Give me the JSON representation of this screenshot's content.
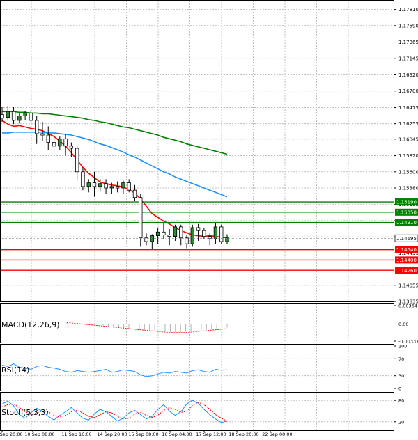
{
  "chart_data": [
    {
      "type": "candlestick",
      "title": "",
      "ylim": [
        1.13835,
        1.1792
      ],
      "price_ticks": [
        "1.17810",
        "1.17590",
        "1.17365",
        "1.17145",
        "1.16920",
        "1.16700",
        "1.16475",
        "1.16255",
        "1.16045",
        "1.15820",
        "1.15600",
        "1.15380",
        "1.15155",
        "1.14935",
        "1.14715",
        "1.14495",
        "1.14275",
        "1.14055",
        "1.13835"
      ],
      "x_ticks": [
        "9 Sep 20:00",
        "10 Sep 08:00",
        "11 Sep 16:00",
        "14 Sep 20:00",
        "15 Sep 08:00",
        "16 Sep 04:00",
        "17 Sep 12:00",
        "18 Sep 20:00",
        "22 Sep 00:00"
      ],
      "current_price": "1.14695",
      "levels": [
        {
          "label": "1.15190",
          "value": 1.1519,
          "kind": "resistance",
          "color": "#008000"
        },
        {
          "label": "1.15050",
          "value": 1.1505,
          "kind": "resistance",
          "color": "#008000"
        },
        {
          "label": "1.14910",
          "value": 1.1491,
          "kind": "resistance",
          "color": "#008000"
        },
        {
          "label": "1.14540",
          "value": 1.1454,
          "kind": "support",
          "color": "#ff0000"
        },
        {
          "label": "1.14400",
          "value": 1.144,
          "kind": "support",
          "color": "#ff0000"
        },
        {
          "label": "1.14260",
          "value": 1.1426,
          "kind": "support",
          "color": "#ff0000"
        }
      ],
      "moving_averages": [
        {
          "color": "#ff0000",
          "values": [
            1.163,
            1.1625,
            1.1622,
            1.1623,
            1.1621,
            1.1619,
            1.1618,
            1.1616,
            1.1612,
            1.1608,
            1.1602,
            1.1595,
            1.1586,
            1.1576,
            1.1566,
            1.1558,
            1.1552,
            1.1546,
            1.1544,
            1.1542,
            1.1541,
            1.1539,
            1.1536,
            1.1531,
            1.1523,
            1.1513,
            1.1503,
            1.1498,
            1.1493,
            1.1489,
            1.1484,
            1.148,
            1.1477,
            1.1474,
            1.1473,
            1.1472,
            1.1473,
            1.1472,
            1.1471,
            1.147
          ]
        },
        {
          "color": "#1e90ff",
          "values": [
            1.1613,
            1.1613,
            1.1614,
            1.1614,
            1.1614,
            1.1614,
            1.1614,
            1.1614,
            1.1613,
            1.1613,
            1.1612,
            1.1611,
            1.161,
            1.1608,
            1.1606,
            1.1604,
            1.1601,
            1.1598,
            1.1596,
            1.1593,
            1.159,
            1.1587,
            1.1583,
            1.158,
            1.1576,
            1.1572,
            1.1568,
            1.1564,
            1.156,
            1.1557,
            1.1553,
            1.155,
            1.1547,
            1.1544,
            1.1541,
            1.1538,
            1.1535,
            1.1532,
            1.1529,
            1.1526
          ]
        },
        {
          "color": "#008000",
          "values": [
            1.1642,
            1.1642,
            1.1642,
            1.1641,
            1.1641,
            1.164,
            1.164,
            1.1639,
            1.1639,
            1.1638,
            1.1637,
            1.1636,
            1.1635,
            1.1634,
            1.1633,
            1.1631,
            1.163,
            1.1628,
            1.1627,
            1.1625,
            1.1623,
            1.1621,
            1.162,
            1.1618,
            1.1616,
            1.1614,
            1.1612,
            1.161,
            1.1607,
            1.1605,
            1.1603,
            1.1601,
            1.1598,
            1.1596,
            1.1594,
            1.1592,
            1.159,
            1.1588,
            1.1586,
            1.1584
          ]
        }
      ],
      "candles": [
        {
          "o": 1.1638,
          "h": 1.1648,
          "l": 1.1628,
          "c": 1.1633
        },
        {
          "o": 1.1634,
          "h": 1.165,
          "l": 1.163,
          "c": 1.1642
        },
        {
          "o": 1.1642,
          "h": 1.1648,
          "l": 1.1625,
          "c": 1.163
        },
        {
          "o": 1.163,
          "h": 1.164,
          "l": 1.1626,
          "c": 1.1636
        },
        {
          "o": 1.1636,
          "h": 1.1643,
          "l": 1.163,
          "c": 1.164
        },
        {
          "o": 1.164,
          "h": 1.1644,
          "l": 1.1626,
          "c": 1.163
        },
        {
          "o": 1.163,
          "h": 1.1636,
          "l": 1.1598,
          "c": 1.1612
        },
        {
          "o": 1.1612,
          "h": 1.1628,
          "l": 1.1602,
          "c": 1.161
        },
        {
          "o": 1.161,
          "h": 1.1622,
          "l": 1.159,
          "c": 1.16
        },
        {
          "o": 1.16,
          "h": 1.1612,
          "l": 1.1585,
          "c": 1.1595
        },
        {
          "o": 1.1595,
          "h": 1.1608,
          "l": 1.159,
          "c": 1.1605
        },
        {
          "o": 1.1605,
          "h": 1.1612,
          "l": 1.1582,
          "c": 1.1595
        },
        {
          "o": 1.1595,
          "h": 1.16,
          "l": 1.158,
          "c": 1.1592
        },
        {
          "o": 1.1592,
          "h": 1.1596,
          "l": 1.1548,
          "c": 1.156
        },
        {
          "o": 1.156,
          "h": 1.1566,
          "l": 1.1535,
          "c": 1.154
        },
        {
          "o": 1.154,
          "h": 1.155,
          "l": 1.1532,
          "c": 1.1545
        },
        {
          "o": 1.1545,
          "h": 1.156,
          "l": 1.1526,
          "c": 1.154
        },
        {
          "o": 1.154,
          "h": 1.155,
          "l": 1.1533,
          "c": 1.1544
        },
        {
          "o": 1.1544,
          "h": 1.155,
          "l": 1.153,
          "c": 1.1538
        },
        {
          "o": 1.1538,
          "h": 1.1545,
          "l": 1.153,
          "c": 1.154
        },
        {
          "o": 1.154,
          "h": 1.1547,
          "l": 1.1532,
          "c": 1.1538
        },
        {
          "o": 1.1538,
          "h": 1.1548,
          "l": 1.153,
          "c": 1.1545
        },
        {
          "o": 1.1545,
          "h": 1.155,
          "l": 1.1532,
          "c": 1.1535
        },
        {
          "o": 1.1535,
          "h": 1.1542,
          "l": 1.152,
          "c": 1.1525
        },
        {
          "o": 1.1525,
          "h": 1.153,
          "l": 1.1458,
          "c": 1.147
        },
        {
          "o": 1.147,
          "h": 1.1476,
          "l": 1.146,
          "c": 1.1465
        },
        {
          "o": 1.1465,
          "h": 1.1475,
          "l": 1.1455,
          "c": 1.1473
        },
        {
          "o": 1.1473,
          "h": 1.1484,
          "l": 1.1462,
          "c": 1.1478
        },
        {
          "o": 1.1478,
          "h": 1.149,
          "l": 1.1468,
          "c": 1.1474
        },
        {
          "o": 1.1474,
          "h": 1.1482,
          "l": 1.146,
          "c": 1.1472
        },
        {
          "o": 1.1472,
          "h": 1.1488,
          "l": 1.1466,
          "c": 1.1485
        },
        {
          "o": 1.1485,
          "h": 1.1488,
          "l": 1.146,
          "c": 1.147
        },
        {
          "o": 1.147,
          "h": 1.1474,
          "l": 1.1456,
          "c": 1.1462
        },
        {
          "o": 1.1462,
          "h": 1.1488,
          "l": 1.1458,
          "c": 1.1484
        },
        {
          "o": 1.1484,
          "h": 1.1489,
          "l": 1.1466,
          "c": 1.148
        },
        {
          "o": 1.148,
          "h": 1.1484,
          "l": 1.1468,
          "c": 1.1472
        },
        {
          "o": 1.1472,
          "h": 1.1476,
          "l": 1.146,
          "c": 1.1469
        },
        {
          "o": 1.1469,
          "h": 1.149,
          "l": 1.1462,
          "c": 1.1485
        },
        {
          "o": 1.1485,
          "h": 1.1488,
          "l": 1.1462,
          "c": 1.1465
        },
        {
          "o": 1.1465,
          "h": 1.1475,
          "l": 1.1462,
          "c": 1.147
        }
      ]
    },
    {
      "type": "bar",
      "label": "MACD(12,26,9)",
      "ticks": [
        "0.00364",
        "0.00",
        "-0.003374"
      ],
      "ylim": [
        -0.003374,
        0.00364
      ],
      "values": [
        0.0004,
        0.0003,
        0.0002,
        0.0001,
        -0.0001,
        -0.0002,
        -0.0003,
        -0.0004,
        -0.0005,
        -0.0006,
        -0.0007,
        -0.0008,
        -0.0009,
        -0.001,
        -0.0011,
        -0.0012,
        -0.0013,
        -0.0014,
        -0.0015,
        -0.0015,
        -0.0016,
        -0.0016,
        -0.0016,
        -0.0015,
        -0.0014,
        -0.0013,
        -0.0012,
        -0.0011,
        -0.001,
        -0.0009,
        -0.0008,
        -0.0007
      ],
      "signal": [
        0.0003,
        0.0002,
        0.0001,
        0.0,
        -0.0001,
        -0.0002,
        -0.0003,
        -0.0004,
        -0.0005,
        -0.0006,
        -0.0007,
        -0.0008,
        -0.0009,
        -0.001,
        -0.0011,
        -0.0012,
        -0.0013,
        -0.0014,
        -0.0015,
        -0.0016,
        -0.0017,
        -0.0017,
        -0.0017,
        -0.0017,
        -0.0016,
        -0.0015,
        -0.0014,
        -0.0013,
        -0.0012,
        -0.0011,
        -0.001,
        -0.0009
      ]
    },
    {
      "type": "line",
      "label": "RSI(14)",
      "ticks": [
        "100",
        "70",
        "30",
        "0"
      ],
      "ylim": [
        0,
        100
      ],
      "values": [
        55,
        52,
        58,
        50,
        48,
        45,
        52,
        54,
        50,
        48,
        45,
        40,
        38,
        42,
        40,
        38,
        40,
        42,
        45,
        38,
        40,
        44,
        42,
        40,
        32,
        28,
        30,
        34,
        38,
        36,
        40,
        38,
        36,
        42,
        44,
        40,
        38,
        45,
        43,
        44
      ]
    },
    {
      "type": "line",
      "label": "Stoch(5,3,3)",
      "ticks": [
        "80",
        "20"
      ],
      "ylim": [
        0,
        100
      ],
      "main": [
        70,
        78,
        65,
        40,
        30,
        45,
        58,
        50,
        35,
        25,
        38,
        48,
        60,
        45,
        30,
        25,
        42,
        55,
        48,
        35,
        22,
        30,
        45,
        52,
        40,
        28,
        35,
        55,
        68,
        50,
        38,
        48,
        70,
        80,
        72,
        55,
        40,
        28,
        18,
        22
      ],
      "signal": [
        62,
        68,
        70,
        60,
        48,
        40,
        45,
        50,
        48,
        38,
        33,
        38,
        48,
        52,
        45,
        35,
        32,
        40,
        48,
        45,
        35,
        28,
        30,
        42,
        46,
        38,
        32,
        38,
        52,
        60,
        55,
        46,
        50,
        66,
        75,
        68,
        55,
        40,
        30,
        22
      ]
    }
  ]
}
